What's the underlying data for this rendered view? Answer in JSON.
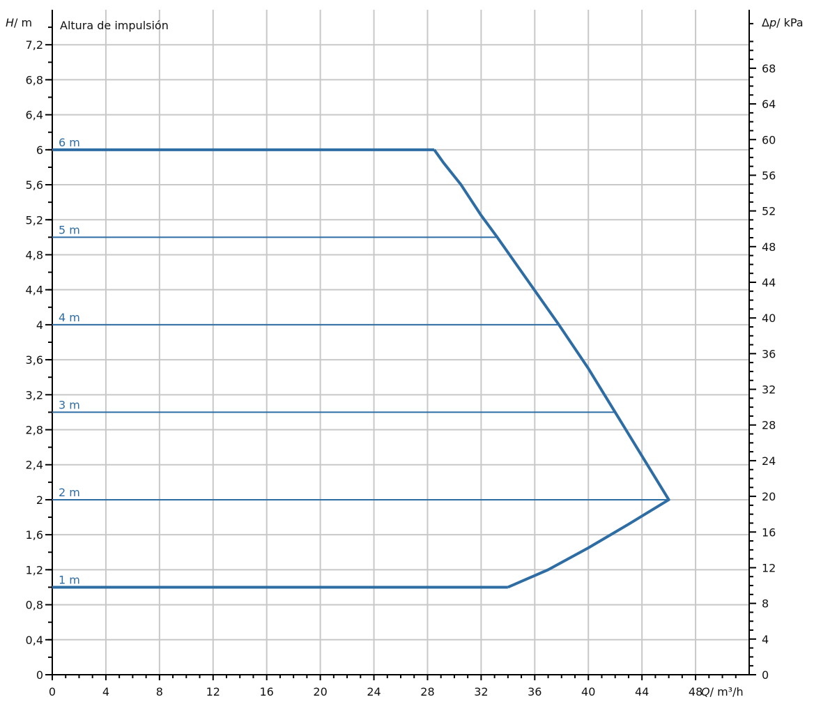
{
  "chart_data": {
    "type": "line",
    "title": "Altura de impulsión",
    "x_axis": {
      "label_var": "Q",
      "label_unit": "/ m³/h",
      "range": [
        0,
        52
      ],
      "ticks": [
        0,
        4,
        8,
        12,
        16,
        20,
        24,
        28,
        32,
        36,
        40,
        44,
        48
      ],
      "tick_labels": [
        "0",
        "4",
        "8",
        "12",
        "16",
        "20",
        "24",
        "28",
        "32",
        "36",
        "40",
        "44",
        "48"
      ]
    },
    "y_axis": {
      "label_var": "H",
      "label_unit": "/ m",
      "range": [
        0,
        7.6
      ],
      "ticks": [
        0,
        0.4,
        0.8,
        1.2,
        1.6,
        2,
        2.4,
        2.8,
        3.2,
        3.6,
        4,
        4.4,
        4.8,
        5.2,
        5.6,
        6,
        6.4,
        6.8,
        7.2
      ],
      "tick_labels": [
        "0",
        "0,4",
        "0,8",
        "1,2",
        "1,6",
        "2",
        "2,4",
        "2,8",
        "3,2",
        "3,6",
        "4",
        "4,4",
        "4,8",
        "5,2",
        "5,6",
        "6",
        "6,4",
        "6,8",
        "7,2"
      ]
    },
    "y2_axis": {
      "label_prefix": "Δ",
      "label_var": "p",
      "label_unit": "/ kPa",
      "range": [
        0,
        74.556
      ],
      "ticks": [
        0,
        4,
        8,
        12,
        16,
        20,
        24,
        28,
        32,
        36,
        40,
        44,
        48,
        52,
        56,
        60,
        64,
        68
      ],
      "tick_labels": [
        "0",
        "4",
        "8",
        "12",
        "16",
        "20",
        "24",
        "28",
        "32",
        "36",
        "40",
        "44",
        "48",
        "52",
        "56",
        "60",
        "64",
        "68"
      ]
    },
    "grid": true,
    "series": [
      {
        "name": "6 m",
        "H": 6,
        "q_end": 28.5
      },
      {
        "name": "5 m",
        "H": 5,
        "q_end": 33.2
      },
      {
        "name": "4 m",
        "H": 4,
        "q_end": 37.8
      },
      {
        "name": "3 m",
        "H": 3,
        "q_end": 42.0
      },
      {
        "name": "2 m",
        "H": 2,
        "q_end": 46.0
      },
      {
        "name": "1 m",
        "H": 1,
        "q_end": 34.0
      }
    ],
    "envelope": {
      "x": [
        0,
        28.5,
        29.2,
        30.5,
        32,
        33.2,
        35.5,
        37.8,
        40,
        42,
        44,
        46,
        43,
        40,
        37,
        34,
        0
      ],
      "y": [
        6,
        6,
        5.85,
        5.6,
        5.25,
        5.0,
        4.5,
        4.0,
        3.5,
        3.0,
        2.5,
        2.0,
        1.72,
        1.45,
        1.2,
        1.0,
        1.0
      ]
    },
    "colors": {
      "curve": "#2e6da4",
      "grid": "#c8c8c8",
      "axis": "#000000"
    }
  }
}
